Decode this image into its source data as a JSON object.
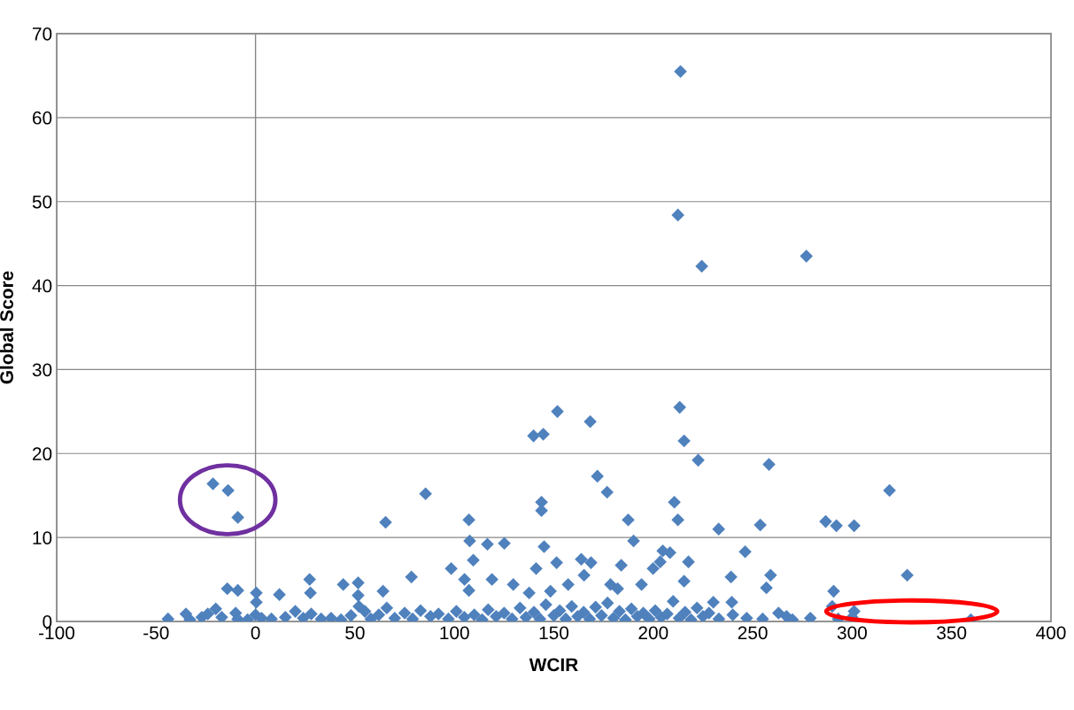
{
  "chart_data": {
    "type": "scatter",
    "xlabel": "WCIR",
    "ylabel": "Global Score",
    "xlim": [
      -100,
      400
    ],
    "xticks": [
      -100,
      -50,
      0,
      50,
      100,
      150,
      200,
      250,
      300,
      350,
      400
    ],
    "ylim": [
      0,
      70
    ],
    "yticks": [
      0,
      10,
      20,
      30,
      40,
      50,
      60,
      70
    ],
    "grid": "y",
    "marker": "diamond",
    "legend": false,
    "series": [
      {
        "color": "#4f81bd",
        "x": [
          213.7,
          212.4,
          224.4,
          277,
          213.3,
          168.3,
          151.8,
          144.7,
          139.8,
          215.5,
          222.6,
          258.2,
          171.9,
          176.8,
          85.5,
          318.8,
          143.8,
          143.8,
          210.6,
          107.3,
          212.4,
          187.4,
          286.7,
          292.1,
          301,
          253.8,
          232.9,
          65.4,
          -21.4,
          -13.8,
          -8.9,
          107.7,
          190.1,
          125.1,
          116.6,
          109.5,
          145.1,
          204.8,
          246.2,
          208.4,
          217.7,
          151.4,
          163.8,
          168.7,
          98.4,
          141.1,
          183.9,
          199.9,
          203.5,
          327.7,
          259,
          239.1,
          78.4,
          27.2,
          51.6,
          44.1,
          105.1,
          118.9,
          129.6,
          165.2,
          157.2,
          178.5,
          194.1,
          215.5,
          256.9,
          -14.2,
          -8.9,
          0.4,
          12,
          27.6,
          64.1,
          107.3,
          137.6,
          148.3,
          182.1,
          290.7,
          51.6,
          0.4,
          230.2,
          239.5,
          359.7,
          300,
          301,
          290,
          293,
          279,
          -44,
          -35,
          -33,
          -27,
          -24,
          -20,
          -17,
          -10,
          -9,
          -4,
          0,
          3,
          8,
          15,
          20,
          24,
          28,
          33,
          38,
          43,
          48,
          52,
          55,
          58,
          62,
          66,
          70,
          75,
          79,
          83,
          88,
          92,
          97,
          101,
          105,
          110,
          114,
          117,
          121,
          125,
          129,
          133,
          136,
          140,
          143,
          146,
          150,
          153,
          156,
          159,
          162,
          165,
          168,
          171,
          174,
          177,
          180,
          183,
          186,
          189,
          192,
          195,
          198,
          201,
          204,
          207,
          210,
          213,
          216,
          219,
          222,
          225,
          228,
          233,
          240,
          247,
          255,
          263,
          267,
          270
        ],
        "values": [
          65.5,
          48.4,
          42.3,
          43.5,
          25.5,
          23.8,
          25.0,
          22.3,
          22.1,
          21.5,
          19.2,
          18.7,
          17.3,
          15.4,
          15.2,
          15.6,
          14.2,
          13.2,
          14.2,
          12.1,
          12.1,
          12.1,
          11.9,
          11.4,
          11.4,
          11.5,
          11.0,
          11.8,
          16.4,
          15.6,
          12.4,
          9.6,
          9.6,
          9.3,
          9.2,
          7.3,
          8.9,
          8.4,
          8.3,
          8.2,
          7.1,
          7.0,
          7.4,
          7.0,
          6.3,
          6.3,
          6.7,
          6.3,
          7.1,
          5.5,
          5.5,
          5.3,
          5.3,
          5.0,
          4.6,
          4.4,
          5.0,
          5.0,
          4.4,
          5.5,
          4.4,
          4.4,
          4.4,
          4.8,
          4.0,
          3.9,
          3.7,
          3.4,
          3.2,
          3.4,
          3.6,
          3.7,
          3.4,
          3.6,
          3.9,
          3.6,
          3.1,
          2.3,
          2.3,
          2.3,
          0.2,
          0.5,
          1.2,
          1.8,
          0.3,
          0.4,
          0.3,
          0.9,
          0.2,
          0.5,
          0.9,
          1.5,
          0.5,
          1.0,
          0.3,
          0.2,
          0.8,
          0.4,
          0.3,
          0.5,
          1.2,
          0.4,
          0.9,
          0.3,
          0.4,
          0.2,
          0.7,
          1.8,
          1.2,
          0.3,
          0.8,
          1.6,
          0.4,
          1.0,
          0.3,
          1.3,
          0.6,
          0.9,
          0.3,
          1.2,
          0.5,
          0.8,
          0.2,
          1.4,
          0.6,
          1.0,
          0.3,
          1.6,
          0.5,
          1.1,
          0.3,
          2.0,
          0.7,
          1.3,
          0.3,
          1.8,
          0.6,
          1.1,
          0.3,
          1.7,
          0.7,
          2.2,
          0.4,
          1.2,
          0.2,
          1.5,
          0.6,
          1.0,
          0.3,
          1.3,
          0.5,
          0.9,
          2.4,
          0.4,
          1.1,
          0.2,
          1.6,
          0.6,
          1.0,
          0.3,
          0.8,
          0.4,
          0.3,
          1.0,
          0.6,
          0.2
        ]
      }
    ]
  }
}
